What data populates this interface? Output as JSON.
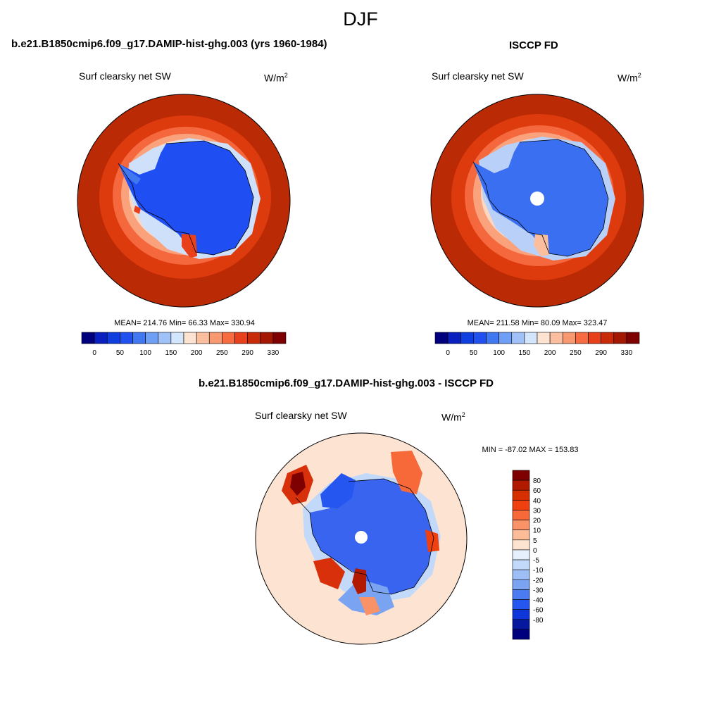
{
  "page": {
    "title": "DJF"
  },
  "panels": {
    "model": {
      "title": "b.e21.B1850cmip6.f09_g17.DAMIP-hist-ghg.003 (yrs 1960-1984)",
      "variable": "Surf clearsky net SW",
      "units_base": "W/m",
      "units_sup": "2",
      "stats": "MEAN= 214.76  Min=  66.33  Max= 330.94"
    },
    "obs": {
      "title": "ISCCP FD",
      "variable": "Surf clearsky net SW",
      "units_base": "W/m",
      "units_sup": "2",
      "stats": "MEAN= 211.58  Min=  80.09  Max= 323.47"
    },
    "diff": {
      "title": "b.e21.B1850cmip6.f09_g17.DAMIP-hist-ghg.003 - ISCCP FD",
      "variable": "Surf clearsky net SW",
      "units_base": "W/m",
      "units_sup": "2",
      "stats": "MIN = -87.02 MAX = 153.83"
    }
  },
  "colorbars": {
    "abs_colors": [
      "#00007f",
      "#0a1fbf",
      "#0f3fe0",
      "#2050f0",
      "#3f78f0",
      "#6f9ef5",
      "#a0c0f8",
      "#d4e6fb",
      "#fde3d2",
      "#fbbfa0",
      "#f89870",
      "#f66c40",
      "#e8401a",
      "#c92a08",
      "#a31703",
      "#7f0000"
    ],
    "abs_labels": [
      "0",
      "50",
      "100",
      "150",
      "200",
      "250",
      "290",
      "330"
    ],
    "diff_colors": [
      "#7f0000",
      "#b21a00",
      "#d73000",
      "#f04010",
      "#f8693a",
      "#fa9268",
      "#fcbc98",
      "#fde4d0",
      "#e6f0fc",
      "#c3d9fa",
      "#9dbff6",
      "#7aa4f2",
      "#4b7bf0",
      "#2556f0",
      "#0f36d8",
      "#06199e",
      "#00007f"
    ],
    "diff_labels": [
      "80",
      "60",
      "40",
      "30",
      "20",
      "10",
      "5",
      "0",
      "-5",
      "-10",
      "-20",
      "-30",
      "-40",
      "-60",
      "-80"
    ]
  },
  "map_colors": {
    "ice_model": "#1f4ff2",
    "ice_obs": "#3b6ff2",
    "ring_outer": "#b92a05",
    "ring_mid1": "#dd3a0e",
    "ring_mid2": "#f5683e",
    "ring_mid3": "#faa27c",
    "ring_inner": "#fcd7c2",
    "coast_pale": "#cfe0fa",
    "diff_bg": "#fde3d2",
    "diff_blue": "#3864f0",
    "diff_red": "#d8300a"
  }
}
